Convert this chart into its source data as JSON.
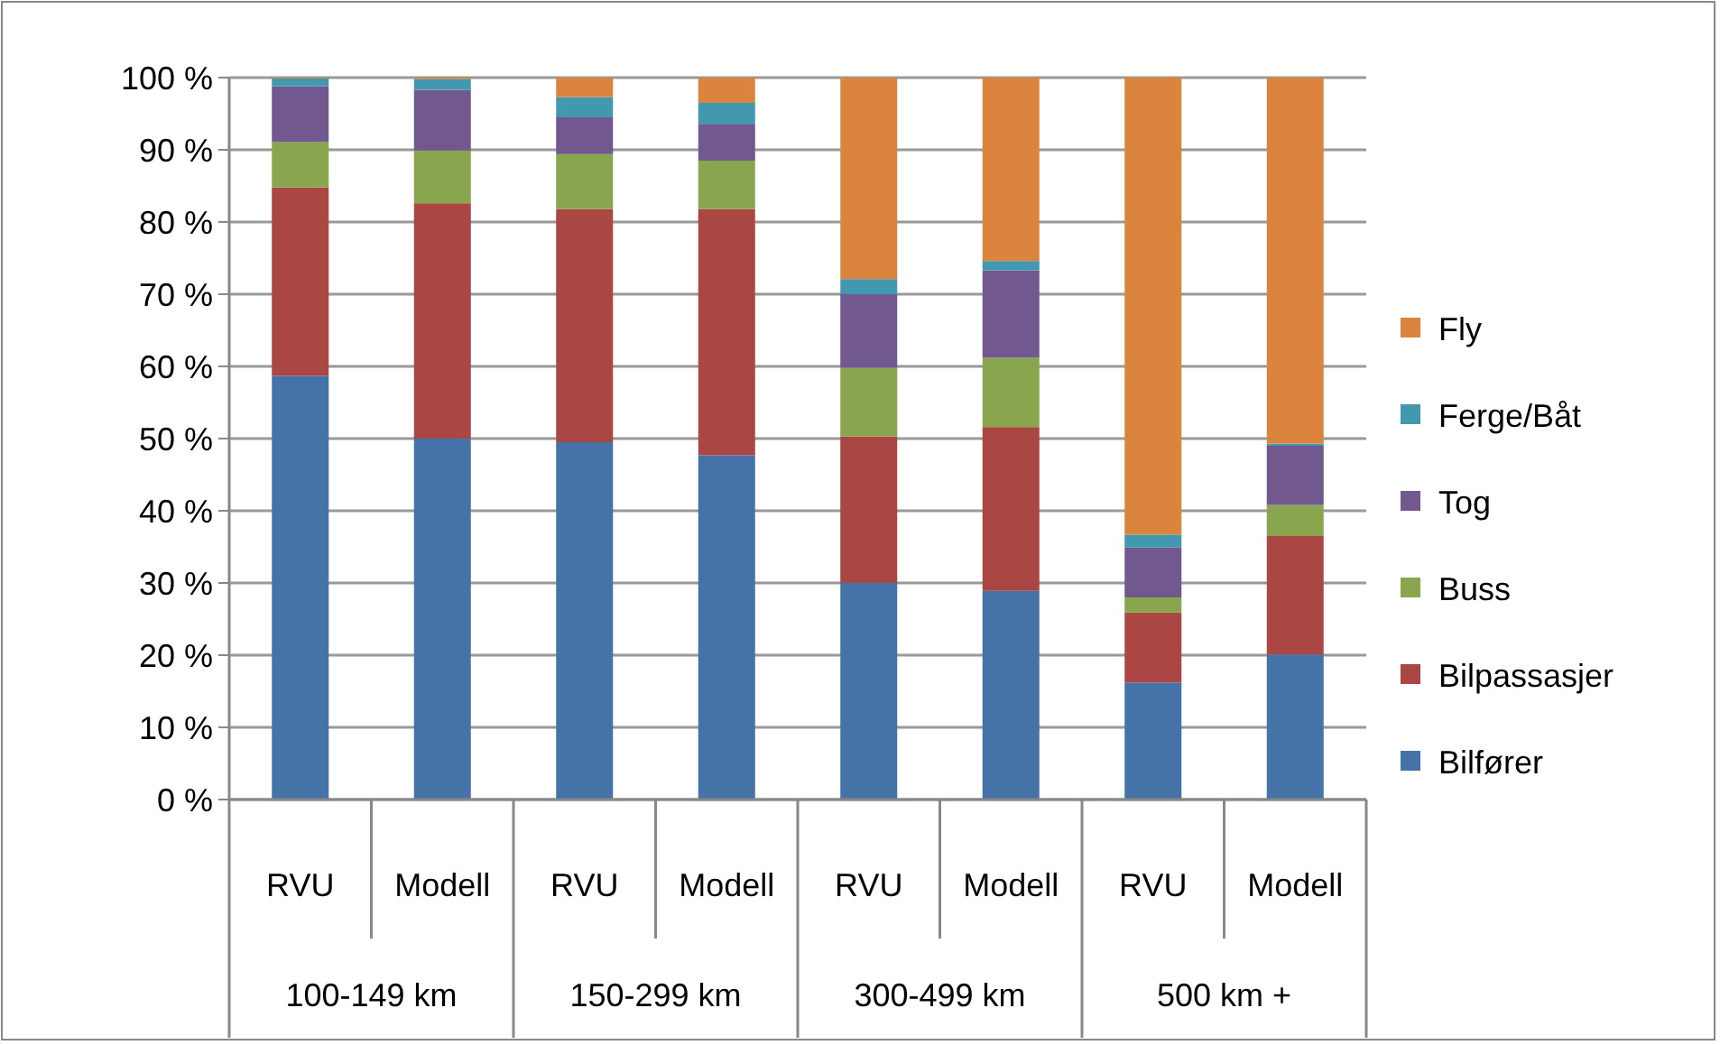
{
  "chart_data": {
    "type": "bar",
    "stacked": true,
    "categories": [
      "RVU",
      "Modell",
      "RVU",
      "Modell",
      "RVU",
      "Modell",
      "RVU",
      "Modell"
    ],
    "annotations": [
      "100-149 km",
      "150-299 km",
      "300-499 km",
      "500 km +"
    ],
    "series": [
      {
        "name": "Bilfører",
        "color": "#4572a7",
        "values": [
          58.7,
          50.0,
          49.5,
          47.7,
          30.0,
          28.9,
          16.2,
          20.1
        ]
      },
      {
        "name": "Bilpassasjer",
        "color": "#aa4643",
        "values": [
          26.1,
          32.6,
          32.3,
          34.1,
          20.3,
          22.7,
          9.7,
          16.4
        ]
      },
      {
        "name": "Buss",
        "color": "#89a54e",
        "values": [
          6.3,
          7.3,
          7.6,
          6.7,
          9.5,
          9.6,
          2.1,
          4.3
        ]
      },
      {
        "name": "Tog",
        "color": "#71588f",
        "values": [
          7.7,
          8.4,
          5.1,
          5.1,
          10.2,
          12.1,
          6.9,
          8.2
        ]
      },
      {
        "name": "Ferge/Båt",
        "color": "#4198af",
        "values": [
          1.1,
          1.5,
          2.8,
          2.9,
          2.1,
          1.3,
          1.8,
          0.3
        ]
      },
      {
        "name": "Fly",
        "color": "#db843d",
        "values": [
          0.1,
          0.2,
          2.7,
          3.5,
          27.9,
          25.4,
          63.3,
          50.7
        ]
      }
    ],
    "ylim": [
      0,
      100
    ],
    "yticks": [
      {
        "value": 0,
        "label": "0 %"
      },
      {
        "value": 10,
        "label": "10 %"
      },
      {
        "value": 20,
        "label": "20 %"
      },
      {
        "value": 30,
        "label": "30 %"
      },
      {
        "value": 40,
        "label": "40 %"
      },
      {
        "value": 50,
        "label": "50 %"
      },
      {
        "value": 60,
        "label": "60 %"
      },
      {
        "value": 70,
        "label": "70 %"
      },
      {
        "value": 80,
        "label": "80 %"
      },
      {
        "value": 90,
        "label": "90 %"
      },
      {
        "value": 100,
        "label": "100 %"
      }
    ],
    "grid": "y",
    "legend": "right"
  }
}
